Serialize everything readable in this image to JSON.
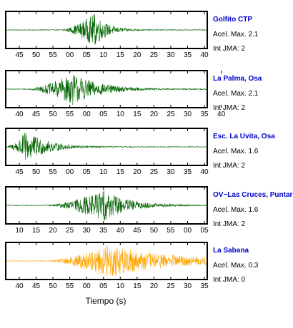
{
  "colors": {
    "station_name": "#0000cc",
    "trace_green": "#006400",
    "trace_orange": "#ffa500",
    "frame": "#000000"
  },
  "xlabel": "Tiempo (s)",
  "chart_data": [
    {
      "type": "line",
      "station": "Golfito CTP",
      "pga_label": "Acel. Max. 2.1",
      "jma_label": "Int JMA: 2",
      "color": "#006400",
      "x_ticks": [
        "45",
        "50",
        "55",
        "00",
        "05",
        "10",
        "15",
        "20",
        "25",
        "30",
        "35",
        "40"
      ],
      "waveform": {
        "onset": 0.27,
        "peak": 0.44,
        "peak_amplitude": 1.0,
        "decay": 0.06,
        "noise": 0.02
      }
    },
    {
      "type": "line",
      "station": "La Palma, Osa",
      "pga_label": "Acel. Max. 2.1",
      "jma_label": "Int JMA: 2",
      "color": "#006400",
      "x_ticks": [
        "40",
        "45",
        "50",
        "55",
        "00",
        "05",
        "10",
        "15",
        "20",
        "25",
        "30",
        "35",
        "40"
      ],
      "waveform": {
        "onset": 0.1,
        "peak": 0.33,
        "peak_amplitude": 0.95,
        "decay": 0.13,
        "noise": 0.02
      }
    },
    {
      "type": "line",
      "station": "Esc. La Uvita, Osa",
      "pga_label": "Acel. Max. 1.6",
      "jma_label": "Int JMA: 2",
      "color": "#006400",
      "x_ticks": [
        "45",
        "50",
        "55",
        "00",
        "05",
        "10",
        "15",
        "20",
        "25",
        "30",
        "35",
        "40"
      ],
      "waveform": {
        "onset": 0.0,
        "peak": 0.1,
        "peak_amplitude": 0.95,
        "decay": 0.1,
        "noise": 0.02
      }
    },
    {
      "type": "line",
      "station": "OV−Las Cruces, Puntar",
      "pga_label": "Acel. Max. 1.6",
      "jma_label": "Int JMA: 2",
      "color": "#006400",
      "x_ticks": [
        "10",
        "15",
        "20",
        "25",
        "30",
        "35",
        "40",
        "45",
        "50",
        "55",
        "00",
        "05"
      ],
      "waveform": {
        "onset": 0.2,
        "peak": 0.48,
        "peak_amplitude": 0.95,
        "decay": 0.12,
        "noise": 0.02
      }
    },
    {
      "type": "line",
      "station": "La Sabana",
      "pga_label": "Acel. Max. 0.3",
      "jma_label": "Int JMA: 0",
      "color": "#ffa500",
      "x_ticks": [
        "40",
        "45",
        "50",
        "55",
        "00",
        "05",
        "10",
        "15",
        "20",
        "25",
        "30",
        "35"
      ],
      "waveform": {
        "onset": 0.2,
        "peak": 0.5,
        "peak_amplitude": 1.0,
        "decay": 0.3,
        "noise": 0.02
      }
    }
  ]
}
